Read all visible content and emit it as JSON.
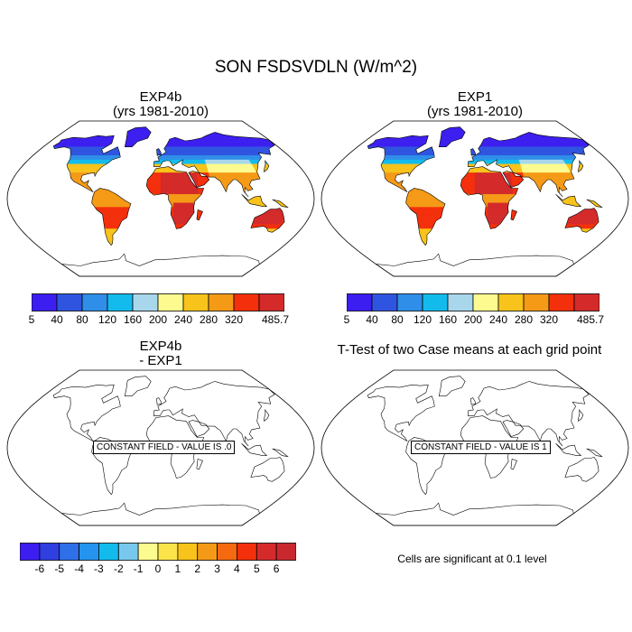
{
  "title": "SON FSDSVDLN (W/m^2)",
  "panels": {
    "top_left": {
      "title_line1": "EXP4b",
      "title_line2": "(yrs 1981-2010)"
    },
    "top_right": {
      "title_line1": "EXP1",
      "title_line2": "(yrs 1981-2010)"
    },
    "bottom_left": {
      "title_line1": "EXP4b",
      "title_line2": "- EXP1",
      "field_label": "CONSTANT FIELD - VALUE IS .0"
    },
    "bottom_right": {
      "title_line1": "T-Test of two Case means at each grid point",
      "field_label": "CONSTANT FIELD - VALUE IS 1"
    }
  },
  "colorbar_top": {
    "labels": [
      "5",
      "40",
      "80",
      "120",
      "160",
      "200",
      "240",
      "280",
      "320",
      "485.7"
    ],
    "colors": [
      "#3c1ef0",
      "#2f55e0",
      "#2f8ee8",
      "#13bbed",
      "#a8d7ec",
      "#fdfb8f",
      "#f8c31a",
      "#f59a16",
      "#f42f0c",
      "#d42a2a"
    ]
  },
  "colorbar_diff": {
    "labels": [
      "-6",
      "-5",
      "-4",
      "-3",
      "-2",
      "-1",
      "0",
      "1",
      "2",
      "3",
      "4",
      "5",
      "6"
    ],
    "colors": [
      "#3c1ef0",
      "#2f3fe0",
      "#2f6fe8",
      "#2494ee",
      "#13bbed",
      "#78c8ee",
      "#fdfb8f",
      "#fbe44a",
      "#f8c31a",
      "#f59a16",
      "#f56a10",
      "#f42f0c",
      "#d42a2a",
      "#c8282e"
    ]
  },
  "significance_note": "Cells are significant at 0.1 level"
}
